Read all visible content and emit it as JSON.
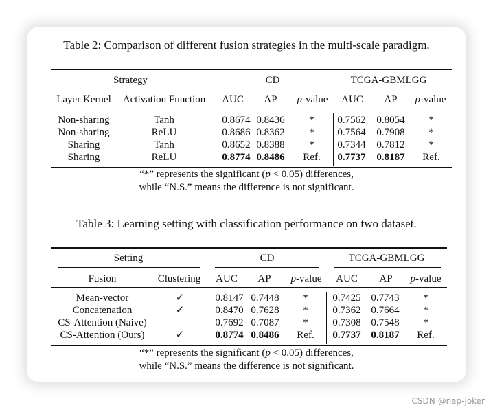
{
  "table2": {
    "caption": "Table 2: Comparison of different fusion strategies in the multi-scale paradigm.",
    "group_headers": {
      "strategy": "Strategy",
      "cd": "CD",
      "tcga": "TCGA-GBMLGG"
    },
    "col_headers": {
      "layer_kernel": "Layer Kernel",
      "activation": "Activation Function",
      "auc": "AUC",
      "ap": "AP",
      "p_italic": "p",
      "p_suffix": "-value"
    },
    "rows": [
      {
        "kernel": "Non-sharing",
        "activation": "Tanh",
        "cd_auc": "0.8674",
        "cd_ap": "0.8436",
        "cd_p": "*",
        "tc_auc": "0.7562",
        "tc_ap": "0.8054",
        "tc_p": "*"
      },
      {
        "kernel": "Non-sharing",
        "activation": "ReLU",
        "cd_auc": "0.8686",
        "cd_ap": "0.8362",
        "cd_p": "*",
        "tc_auc": "0.7564",
        "tc_ap": "0.7908",
        "tc_p": "*"
      },
      {
        "kernel": "Sharing",
        "activation": "Tanh",
        "cd_auc": "0.8652",
        "cd_ap": "0.8388",
        "cd_p": "*",
        "tc_auc": "0.7344",
        "tc_ap": "0.7812",
        "tc_p": "*"
      },
      {
        "kernel": "Sharing",
        "activation": "ReLU",
        "cd_auc": "0.8774",
        "cd_ap": "0.8486",
        "cd_p": "Ref.",
        "tc_auc": "0.7737",
        "tc_ap": "0.8187",
        "tc_p": "Ref."
      }
    ],
    "note": {
      "line1_pre": "“*” represents the significant (",
      "line1_p": "p",
      "line1_post": " < 0.05) differences,",
      "line2": "while “N.S.” means the difference is not significant."
    }
  },
  "table3": {
    "caption": "Table 3: Learning setting with classification performance on two dataset.",
    "group_headers": {
      "setting": "Setting",
      "cd": "CD",
      "tcga": "TCGA-GBMLGG"
    },
    "col_headers": {
      "fusion": "Fusion",
      "clustering": "Clustering",
      "auc": "AUC",
      "ap": "AP",
      "p_italic": "p",
      "p_suffix": "-value"
    },
    "rows": [
      {
        "fusion": "Mean-vector",
        "clustering": "✓",
        "cd_auc": "0.8147",
        "cd_ap": "0.7448",
        "cd_p": "*",
        "tc_auc": "0.7425",
        "tc_ap": "0.7743",
        "tc_p": "*"
      },
      {
        "fusion": "Concatenation",
        "clustering": "✓",
        "cd_auc": "0.8470",
        "cd_ap": "0.7628",
        "cd_p": "*",
        "tc_auc": "0.7362",
        "tc_ap": "0.7664",
        "tc_p": "*"
      },
      {
        "fusion": "CS-Attention (Naive)",
        "clustering": "",
        "cd_auc": "0.7692",
        "cd_ap": "0.7087",
        "cd_p": "*",
        "tc_auc": "0.7308",
        "tc_ap": "0.7548",
        "tc_p": "*"
      },
      {
        "fusion": "CS-Attention (Ours)",
        "clustering": "✓",
        "cd_auc": "0.8774",
        "cd_ap": "0.8486",
        "cd_p": "Ref.",
        "tc_auc": "0.7737",
        "tc_ap": "0.8187",
        "tc_p": "Ref."
      }
    ],
    "note": {
      "line1_pre": "“*” represents the significant (",
      "line1_p": "p",
      "line1_post": " < 0.05) differences,",
      "line2": "while “N.S.” means the difference is not significant."
    }
  },
  "watermark": "CSDN @nap-joker"
}
